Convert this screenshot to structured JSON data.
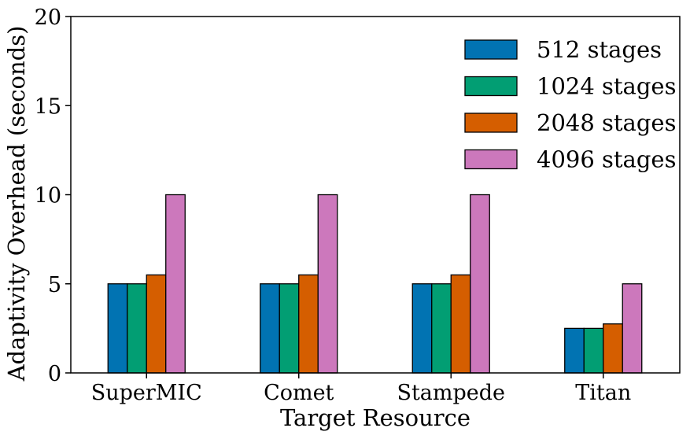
{
  "chart_data": {
    "type": "bar",
    "title": "",
    "xlabel": "Target Resource",
    "ylabel": "Adaptivity Overhead (seconds)",
    "ylim": [
      0,
      20
    ],
    "yticks": [
      "0",
      "5",
      "10",
      "15",
      "20"
    ],
    "categories": [
      "SuperMIC",
      "Comet",
      "Stampede",
      "Titan"
    ],
    "series": [
      {
        "name": "512 stages",
        "color": "#0173b2",
        "values": [
          5,
          5,
          5,
          2.5
        ]
      },
      {
        "name": "1024 stages",
        "color": "#029e73",
        "values": [
          5,
          5,
          5,
          2.5
        ]
      },
      {
        "name": "2048 stages",
        "color": "#d55e00",
        "values": [
          5.5,
          5.5,
          5.5,
          2.75
        ]
      },
      {
        "name": "4096 stages",
        "color": "#cc78bc",
        "values": [
          10,
          10,
          10,
          5
        ]
      }
    ],
    "legend_position": "top-right",
    "grid": false
  }
}
